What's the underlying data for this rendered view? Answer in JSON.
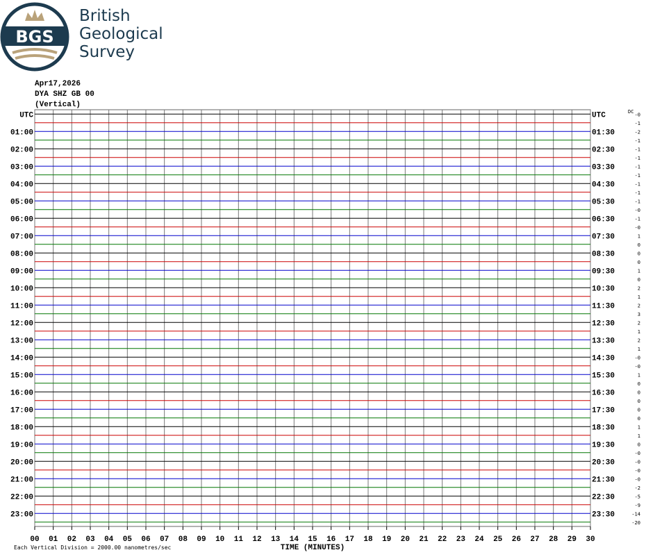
{
  "logo": {
    "abbr": "BGS",
    "name": [
      "British",
      "Geological",
      "Survey"
    ]
  },
  "header": {
    "date": "Apr17,2026",
    "channel": "DYA SHZ GB 00",
    "component": "(Vertical)"
  },
  "left_labels": [
    "UTC",
    "01:00",
    "02:00",
    "03:00",
    "04:00",
    "05:00",
    "06:00",
    "07:00",
    "08:00",
    "09:00",
    "10:00",
    "11:00",
    "12:00",
    "13:00",
    "14:00",
    "15:00",
    "16:00",
    "17:00",
    "18:00",
    "19:00",
    "20:00",
    "21:00",
    "22:00",
    "23:00"
  ],
  "right_labels": [
    "UTC",
    "01:30",
    "02:30",
    "03:30",
    "04:30",
    "05:30",
    "06:30",
    "07:30",
    "08:30",
    "09:30",
    "10:30",
    "11:30",
    "12:30",
    "13:30",
    "14:30",
    "15:30",
    "16:30",
    "17:30",
    "18:30",
    "19:30",
    "20:30",
    "21:30",
    "22:30",
    "23:30"
  ],
  "dc_header": "DC",
  "dc_offsets": [
    "-0",
    "-1",
    "-2",
    "-1",
    "-1",
    "-1",
    "-1",
    "-1",
    "-1",
    "-1",
    "-1",
    "-0",
    "-1",
    "-0",
    "1",
    "0",
    "0",
    "0",
    "1",
    "0",
    "2",
    "1",
    "2",
    "3",
    "2",
    "1",
    "2",
    "1",
    "-0",
    "-0",
    "1",
    "0",
    "0",
    "0",
    "0",
    "0",
    "1",
    "1",
    "0",
    "-0",
    "-0",
    "-0",
    "-0",
    "-2",
    "-5",
    "-9",
    "-14",
    "-20"
  ],
  "x_ticks": [
    "00",
    "01",
    "02",
    "03",
    "04",
    "05",
    "06",
    "07",
    "08",
    "09",
    "10",
    "11",
    "12",
    "13",
    "14",
    "15",
    "16",
    "17",
    "18",
    "19",
    "20",
    "21",
    "22",
    "23",
    "24",
    "25",
    "26",
    "27",
    "28",
    "29",
    "30"
  ],
  "x_title": "TIME (MINUTES)",
  "footer": "Each Vertical Division = 2000.00 nanometres/sec",
  "trace_colors": [
    "#000000",
    "#cc0000",
    "#0000cc",
    "#007700"
  ]
}
